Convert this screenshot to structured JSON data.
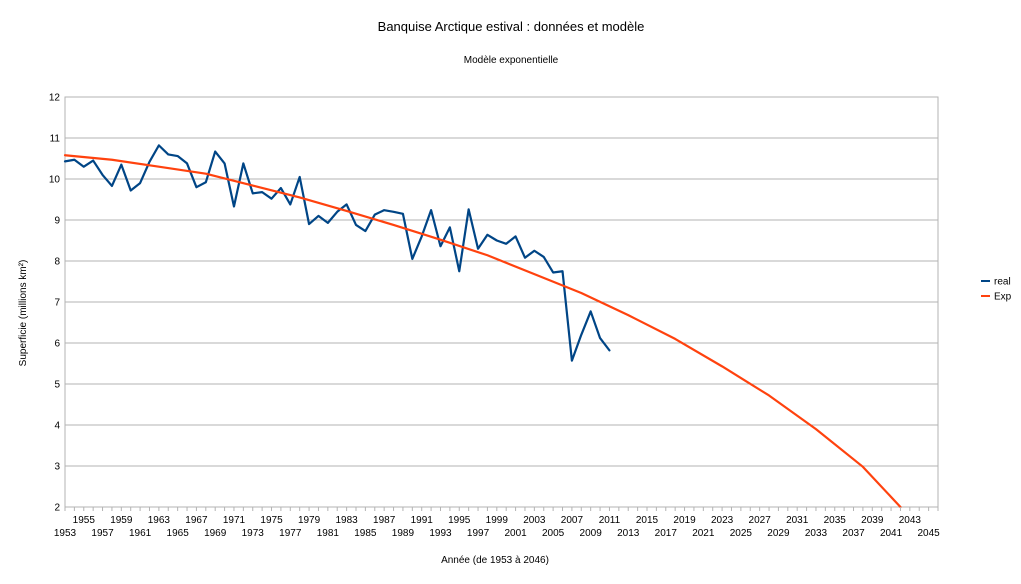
{
  "chart_data": {
    "type": "line",
    "title": "Banquise Arctique estival : données et modèle",
    "subtitle": "Modèle exponentielle",
    "xlabel": "Année (de 1953 à 2046)",
    "ylabel": "Superficie (millions km²)",
    "xlim": [
      1953,
      2046
    ],
    "ylim": [
      2,
      12
    ],
    "y_ticks": [
      2,
      3,
      4,
      5,
      6,
      7,
      8,
      9,
      10,
      11,
      12
    ],
    "x_tick_labels_lower": [
      "1953",
      "1957",
      "1961",
      "1965",
      "1969",
      "1973",
      "1977",
      "1981",
      "1985",
      "1989",
      "1993",
      "1997",
      "2001",
      "2005",
      "2009",
      "2013",
      "2017",
      "2021",
      "2025",
      "2029",
      "2033",
      "2037",
      "2041",
      "2045"
    ],
    "x_tick_labels_upper": [
      "1955",
      "1959",
      "1963",
      "1967",
      "1971",
      "1975",
      "1979",
      "1983",
      "1987",
      "1991",
      "1995",
      "1999",
      "2003",
      "2007",
      "2011",
      "2015",
      "2019",
      "2023",
      "2027",
      "2031",
      "2035",
      "2039",
      "2043"
    ],
    "grid": true,
    "legend_position": "right",
    "series": [
      {
        "name": "real",
        "color": "#004586",
        "x": [
          1953,
          1954,
          1955,
          1956,
          1957,
          1958,
          1959,
          1960,
          1961,
          1962,
          1963,
          1964,
          1965,
          1966,
          1967,
          1968,
          1969,
          1970,
          1971,
          1972,
          1973,
          1974,
          1975,
          1976,
          1977,
          1978,
          1979,
          1980,
          1981,
          1982,
          1983,
          1984,
          1985,
          1986,
          1987,
          1988,
          1989,
          1990,
          1991,
          1992,
          1993,
          1994,
          1995,
          1996,
          1997,
          1998,
          1999,
          2000,
          2001,
          2002,
          2003,
          2004,
          2005,
          2006,
          2007,
          2008,
          2009,
          2010,
          2011
        ],
        "values": [
          10.43,
          10.47,
          10.3,
          10.45,
          10.1,
          9.83,
          10.35,
          9.72,
          9.9,
          10.42,
          10.82,
          10.6,
          10.56,
          10.38,
          9.8,
          9.92,
          10.67,
          10.38,
          9.33,
          10.38,
          9.65,
          9.68,
          9.52,
          9.78,
          9.38,
          10.05,
          8.9,
          9.1,
          8.93,
          9.2,
          9.38,
          8.88,
          8.73,
          9.13,
          9.24,
          9.2,
          9.15,
          8.05,
          8.6,
          9.24,
          8.36,
          8.82,
          7.75,
          9.26,
          8.3,
          8.64,
          8.5,
          8.42,
          8.6,
          8.08,
          8.25,
          8.1,
          7.72,
          7.75,
          5.57,
          6.2,
          6.77,
          6.12,
          5.82
        ]
      },
      {
        "name": "Exp",
        "color": "#ff420e",
        "x": [
          1953,
          1958,
          1963,
          1968,
          1973,
          1978,
          1983,
          1988,
          1993,
          1998,
          2003,
          2008,
          2013,
          2018,
          2023,
          2028,
          2033,
          2038,
          2042
        ],
        "values": [
          10.58,
          10.47,
          10.3,
          10.13,
          9.84,
          9.55,
          9.22,
          8.88,
          8.52,
          8.14,
          7.68,
          7.22,
          6.68,
          6.1,
          5.43,
          4.72,
          3.9,
          2.98,
          2.0
        ]
      }
    ]
  }
}
